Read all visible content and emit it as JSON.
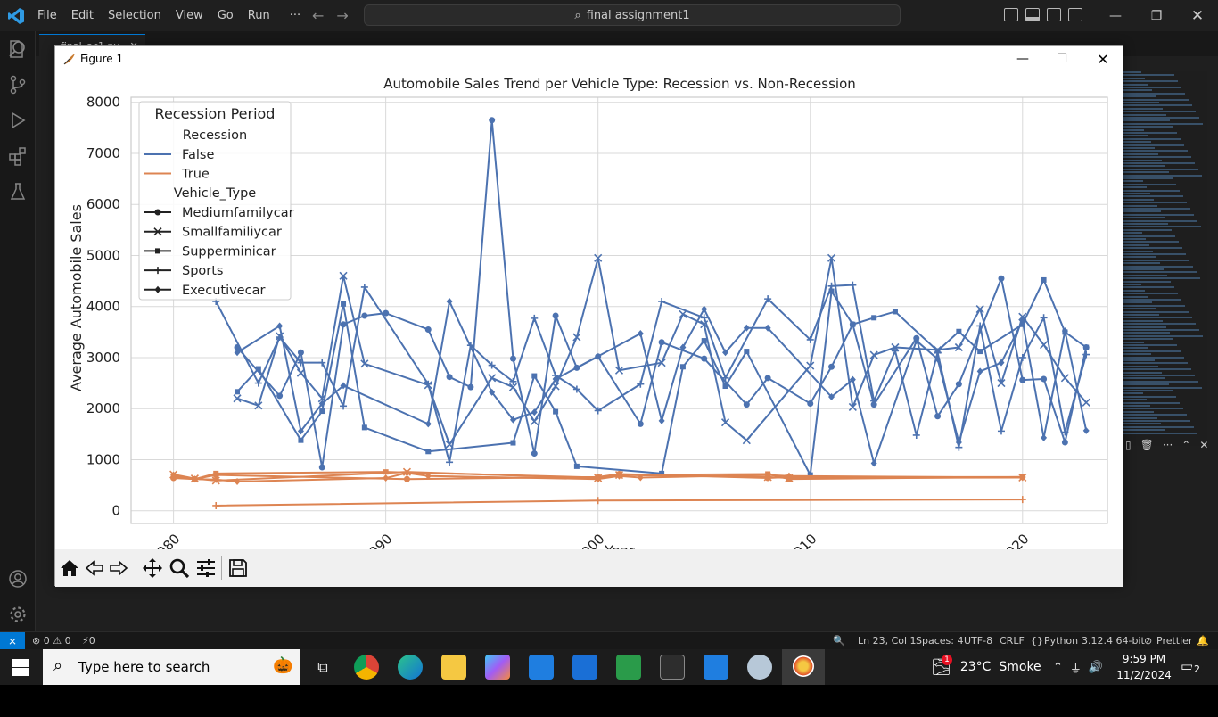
{
  "vscode": {
    "menu": [
      "File",
      "Edit",
      "Selection",
      "View",
      "Go",
      "Run",
      "···"
    ],
    "search_text": "final assignment1",
    "tab_label": "final_ac1.py",
    "status": {
      "problems": "⊗ 0 ⚠ 0",
      "ports": "⚡0",
      "position": "Ln 23, Col 1",
      "spaces": "Spaces: 4",
      "encoding": "UTF-8",
      "eol": "CRLF",
      "language": "Python",
      "interpreter": "3.12.4 64-bit",
      "prettier": "Prettier"
    }
  },
  "figure": {
    "window_title": "Figure 1",
    "chart_data": {
      "type": "line",
      "title": "Automobile Sales Trend per Vehicle Type: Recession vs. Non-Recession",
      "xlabel": "Year",
      "ylabel": "Average Automobile Sales",
      "xlim": [
        1978,
        2024
      ],
      "ylim": [
        -250,
        8100
      ],
      "x_ticks": [
        1980,
        1990,
        2000,
        2010,
        2020
      ],
      "y_ticks": [
        0,
        1000,
        2000,
        3000,
        4000,
        5000,
        6000,
        7000,
        8000
      ],
      "grid": true,
      "legend": {
        "title": "Recession Period",
        "placement": "top-left",
        "hue_title": "Recession",
        "hue_entries": [
          {
            "label": "False",
            "color": "#4c72b0"
          },
          {
            "label": "True",
            "color": "#dd8452"
          }
        ],
        "style_title": "Vehicle_Type",
        "style_entries": [
          {
            "label": "Mediumfamilycar",
            "marker": "circle"
          },
          {
            "label": "Smallfamiliycar",
            "marker": "x"
          },
          {
            "label": "Supperminicar",
            "marker": "square"
          },
          {
            "label": "Sports",
            "marker": "plus"
          },
          {
            "label": "Executivecar",
            "marker": "diamond"
          }
        ]
      },
      "series": [
        {
          "name": "False",
          "vehicle": "Mediumfamilycar",
          "marker": "circle",
          "color": "#4c72b0",
          "x": [
            1983,
            1985,
            1986,
            1987,
            1988,
            1989,
            1990,
            1992,
            1993,
            1994,
            1995,
            1996,
            1997,
            1998,
            1999,
            2000,
            2002,
            2003,
            2005,
            2007,
            2008,
            2010,
            2011,
            2012,
            2013,
            2015,
            2016,
            2017,
            2019,
            2020,
            2021,
            2022,
            2023
          ],
          "y": [
            3200,
            2250,
            3100,
            850,
            3650,
            3820,
            3870,
            3550,
            2620,
            2420,
            7650,
            2980,
            1120,
            3820,
            2800,
            3020,
            1700,
            3300,
            2980,
            2080,
            2600,
            2100,
            2820,
            3650,
            2080,
            3380,
            1850,
            2480,
            4550,
            2560,
            2580,
            1340,
            3200
          ]
        },
        {
          "name": "False",
          "vehicle": "Smallfamiliycar",
          "marker": "x",
          "color": "#4c72b0",
          "x": [
            1983,
            1984,
            1985,
            1986,
            1987,
            1988,
            1989,
            1992,
            1993,
            1995,
            1996,
            1997,
            1998,
            1999,
            2000,
            2001,
            2003,
            2004,
            2005,
            2006,
            2007,
            2010,
            2011,
            2012,
            2013,
            2014,
            2016,
            2017,
            2018,
            2019,
            2020,
            2021,
            2022,
            2023
          ],
          "y": [
            2200,
            2060,
            3420,
            2700,
            2200,
            4600,
            2880,
            2460,
            1300,
            2600,
            2420,
            1750,
            2440,
            3400,
            4950,
            2750,
            2900,
            3850,
            3650,
            1730,
            1380,
            2840,
            4950,
            2030,
            3050,
            3200,
            3150,
            3200,
            3950,
            2500,
            3800,
            3250,
            2600,
            2120
          ]
        },
        {
          "name": "False",
          "vehicle": "Supperminicar",
          "marker": "square",
          "color": "#4c72b0",
          "x": [
            1983,
            1984,
            1986,
            1987,
            1988,
            1989,
            1992,
            1996,
            1997,
            1998,
            1999,
            2003,
            2004,
            2005,
            2006,
            2007,
            2010,
            2011,
            2012,
            2013,
            2014,
            2016,
            2017,
            2018,
            2020,
            2021,
            2022,
            2023
          ],
          "y": [
            2330,
            2780,
            1380,
            1950,
            4050,
            1630,
            1160,
            1330,
            2640,
            1940,
            870,
            730,
            2820,
            3330,
            2440,
            3120,
            700,
            4300,
            3650,
            3780,
            3900,
            3130,
            3510,
            3120,
            3650,
            4520,
            3500,
            3200
          ]
        },
        {
          "name": "False",
          "vehicle": "Sports",
          "marker": "plus",
          "color": "#4c72b0",
          "x": [
            1982,
            1984,
            1985,
            1986,
            1987,
            1988,
            1989,
            1992,
            1993,
            1994,
            1995,
            1996,
            1997,
            1998,
            1999,
            2000,
            2002,
            2003,
            2005,
            2006,
            2008,
            2010,
            2011,
            2012,
            2013,
            2014,
            2015,
            2016,
            2017,
            2018,
            2019,
            2020,
            2021,
            2022,
            2023
          ],
          "y": [
            4100,
            2500,
            3400,
            2900,
            2900,
            2050,
            4380,
            2480,
            950,
            3240,
            2850,
            2530,
            3770,
            2650,
            2380,
            1960,
            2480,
            4100,
            3780,
            2600,
            4150,
            3350,
            4400,
            4420,
            2150,
            3130,
            1480,
            3100,
            1240,
            3620,
            1560,
            3000,
            3780,
            1540,
            3060
          ]
        },
        {
          "name": "False",
          "vehicle": "Executivecar",
          "marker": "diamond",
          "color": "#4c72b0",
          "x": [
            1983,
            1985,
            1986,
            1987,
            1988,
            1992,
            1993,
            1995,
            1996,
            1997,
            1998,
            2002,
            2003,
            2004,
            2005,
            2006,
            2007,
            2008,
            2011,
            2012,
            2013,
            2015,
            2016,
            2017,
            2018,
            2019,
            2020,
            2021,
            2022,
            2023
          ],
          "y": [
            3100,
            3620,
            1560,
            2100,
            2450,
            1700,
            4100,
            2320,
            1780,
            1930,
            2580,
            3470,
            1760,
            3200,
            3950,
            3100,
            3580,
            3580,
            2230,
            2570,
            930,
            3330,
            2970,
            1340,
            2730,
            2900,
            3720,
            1430,
            3520,
            1570
          ]
        },
        {
          "name": "True",
          "vehicle": "Mediumfamilycar",
          "marker": "circle",
          "color": "#dd8452",
          "x": [
            1980,
            1981,
            1982,
            1991,
            2000,
            2001,
            2008,
            2009,
            2020
          ],
          "y": [
            640,
            620,
            700,
            620,
            660,
            720,
            640,
            660,
            660
          ]
        },
        {
          "name": "True",
          "vehicle": "Smallfamiliycar",
          "marker": "x",
          "color": "#dd8452",
          "x": [
            1980,
            1981,
            1982,
            1991,
            2000,
            2001,
            2008,
            2009,
            2020
          ],
          "y": [
            710,
            630,
            590,
            760,
            640,
            700,
            660,
            640,
            650
          ]
        },
        {
          "name": "True",
          "vehicle": "Supperminicar",
          "marker": "square",
          "color": "#dd8452",
          "x": [
            1980,
            1981,
            1982,
            1990,
            2000,
            2001,
            2008,
            2009,
            2020
          ],
          "y": [
            660,
            620,
            730,
            760,
            650,
            700,
            720,
            620,
            660
          ]
        },
        {
          "name": "True",
          "vehicle": "Sports",
          "marker": "plus",
          "color": "#dd8452",
          "x": [
            1982,
            2000,
            2020
          ],
          "y": [
            100,
            200,
            220
          ]
        },
        {
          "name": "True",
          "vehicle": "Executivecar",
          "marker": "diamond",
          "color": "#dd8452",
          "x": [
            1980,
            1981,
            1982,
            1983,
            1990,
            1991,
            1992,
            2000,
            2001,
            2002,
            2008,
            2009,
            2020
          ],
          "y": [
            700,
            620,
            610,
            570,
            640,
            740,
            680,
            620,
            680,
            650,
            700,
            680,
            650
          ]
        }
      ]
    },
    "toolbar": [
      "home",
      "back",
      "forward",
      "pan",
      "zoom",
      "configure-subplots",
      "save"
    ]
  },
  "taskbar": {
    "search_placeholder": "Type here to search",
    "weather": "23°C  Smoke",
    "weather_badge": "1",
    "time": "9:59 PM",
    "date": "11/2/2024",
    "notif_count": "2"
  }
}
